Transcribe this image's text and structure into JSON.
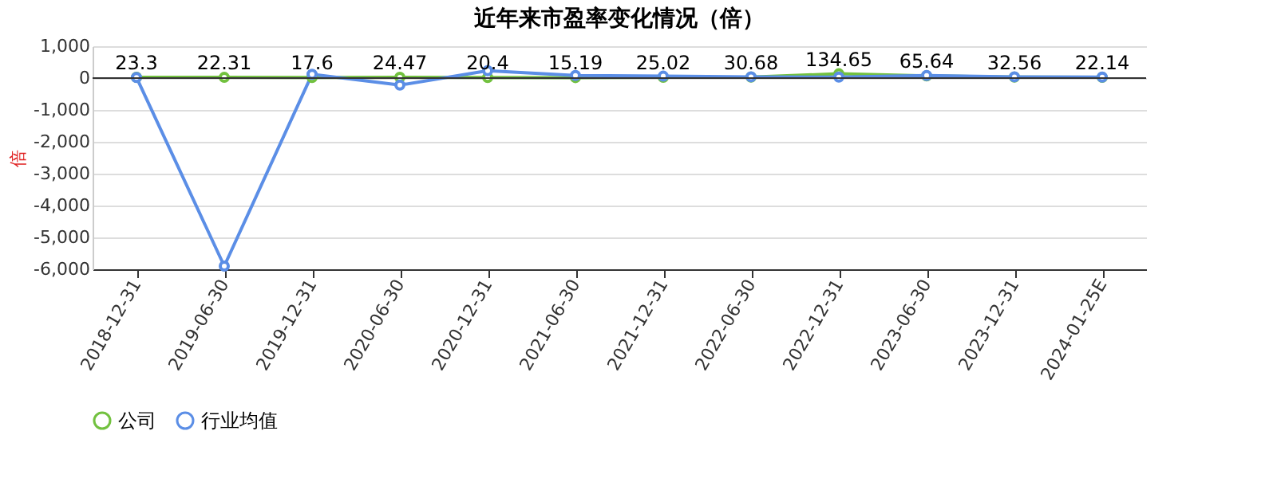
{
  "chart_data": {
    "type": "line",
    "title": "近年来市盈率变化情况（倍）",
    "ylabel": "倍",
    "categories": [
      "2018-12-31",
      "2019-06-30",
      "2019-12-31",
      "2020-06-30",
      "2020-12-31",
      "2021-06-30",
      "2021-12-31",
      "2022-06-30",
      "2022-12-31",
      "2023-06-30",
      "2023-12-31",
      "2024-01-25E"
    ],
    "series": [
      {
        "name": "公司",
        "color": "#72c13f",
        "values": [
          23.3,
          22.31,
          17.6,
          24.47,
          20.4,
          15.19,
          25.02,
          30.68,
          134.65,
          65.64,
          32.56,
          22.14
        ],
        "value_labels": [
          "23.3",
          "22.31",
          "17.6",
          "24.47",
          "20.4",
          "15.19",
          "25.02",
          "30.68",
          "134.65",
          "65.64",
          "32.56",
          "22.14"
        ]
      },
      {
        "name": "行业均值",
        "color": "#5b8ee6",
        "values": [
          20,
          -5900,
          120,
          -220,
          230,
          80,
          60,
          40,
          30,
          80,
          40,
          30
        ]
      }
    ],
    "ylim": [
      -6000,
      1000
    ],
    "yticks": [
      {
        "value": -6000,
        "label": "-6,000"
      },
      {
        "value": -5000,
        "label": "-5,000"
      },
      {
        "value": -4000,
        "label": "-4,000"
      },
      {
        "value": -3000,
        "label": "-3,000"
      },
      {
        "value": -2000,
        "label": "-2,000"
      },
      {
        "value": -1000,
        "label": "-1,000"
      },
      0,
      {
        "value": 1000,
        "label": "1,000"
      }
    ],
    "grid": "y",
    "legend": "bottom",
    "marker": "circle"
  }
}
